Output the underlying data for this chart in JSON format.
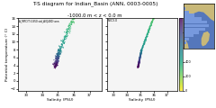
{
  "title": "T-S diagram for Indian_Basin (ANN, 0003-0005)",
  "subtitle": "-1000.0 m < z < 0.0 m",
  "salinity_range": [
    32.5,
    37.75
  ],
  "temp_range": [
    -2.5,
    16.0
  ],
  "sigma_levels": [
    24.0,
    25.0,
    25.5,
    26.0,
    26.5,
    27.0,
    27.25,
    27.5,
    27.75,
    28.0,
    28.25,
    28.5,
    28.75,
    29.0,
    29.25,
    29.5,
    30.0,
    31.0,
    32.0,
    33.0,
    34.0,
    35.0,
    36.0,
    37.0,
    38.0,
    39.0,
    40.0
  ],
  "clim": [
    0,
    1000
  ],
  "xlabel": "Salinity (PSU)",
  "ylabel": "Potential temperature (° C)",
  "left_annotation": "A_MFC(T):1650 std_A(Q480) ann",
  "right_annotation": "MFC3.0",
  "panel_bg": "#f5f5f5",
  "contour_color": "#888888",
  "map_bg": "#4477aa"
}
